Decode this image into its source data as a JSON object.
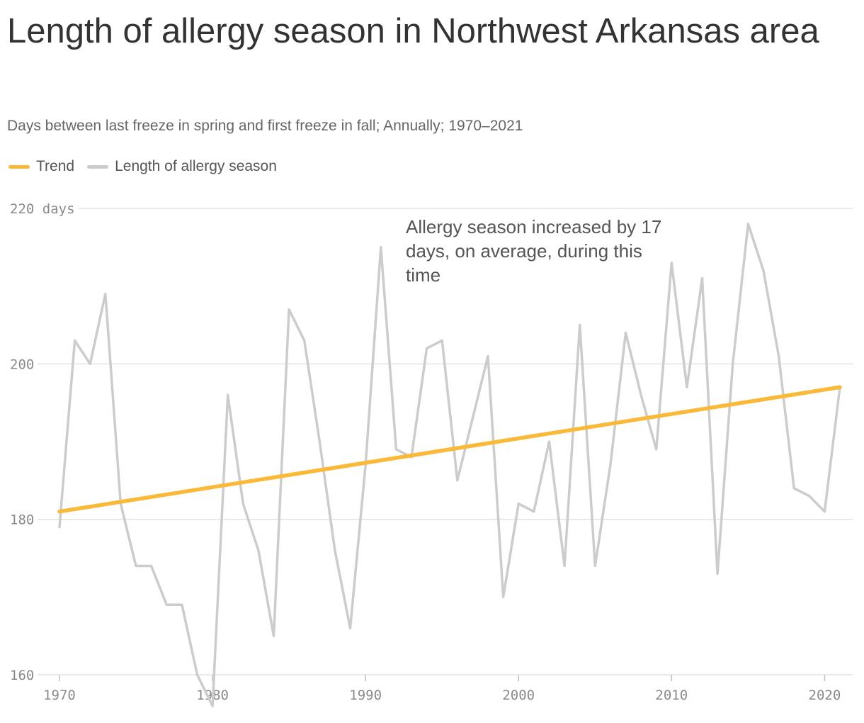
{
  "header": {
    "title": "Length of allergy season in Northwest Arkansas area",
    "subtitle": "Days between last freeze in spring and first freeze in fall; Annually; 1970–2021"
  },
  "legend": [
    {
      "label": "Trend",
      "color": "#fbb939"
    },
    {
      "label": "Length of allergy season",
      "color": "#cccccc"
    }
  ],
  "annotation": "Allergy season increased by 17 days, on average, during this time",
  "chart_data": {
    "type": "line",
    "title": "Length of allergy season in Northwest Arkansas area",
    "subtitle": "Days between last freeze in spring and first freeze in fall; Annually; 1970–2021",
    "xlabel": "",
    "ylabel": "",
    "x": [
      1970,
      1971,
      1972,
      1973,
      1974,
      1975,
      1976,
      1977,
      1978,
      1979,
      1980,
      1981,
      1982,
      1983,
      1984,
      1985,
      1986,
      1987,
      1988,
      1989,
      1990,
      1991,
      1992,
      1993,
      1994,
      1995,
      1996,
      1997,
      1998,
      1999,
      2000,
      2001,
      2002,
      2003,
      2004,
      2005,
      2006,
      2007,
      2008,
      2009,
      2010,
      2011,
      2012,
      2013,
      2014,
      2015,
      2016,
      2017,
      2018,
      2019,
      2020,
      2021
    ],
    "series": [
      {
        "name": "Length of allergy season",
        "color": "#cccccc",
        "values": [
          179,
          203,
          200,
          209,
          182,
          174,
          174,
          169,
          169,
          160,
          156,
          196,
          182,
          176,
          165,
          207,
          203,
          190,
          176,
          166,
          187,
          215,
          189,
          188,
          202,
          203,
          185,
          193,
          201,
          170,
          182,
          181,
          190,
          174,
          205,
          174,
          187,
          204,
          196,
          189,
          213,
          197,
          211,
          173,
          200,
          218,
          212,
          201,
          184,
          183,
          181,
          197
        ]
      },
      {
        "name": "Trend",
        "color": "#fbb939",
        "x": [
          1970,
          2021
        ],
        "values": [
          181,
          197
        ]
      }
    ],
    "xlim": [
      1970,
      2021
    ],
    "ylim": [
      160,
      220
    ],
    "xticks": [
      1970,
      1980,
      1990,
      2000,
      2010,
      2020
    ],
    "yticks": [
      {
        "value": 220,
        "label": "220 days"
      },
      {
        "value": 200,
        "label": "200"
      },
      {
        "value": 180,
        "label": "180"
      },
      {
        "value": 160,
        "label": "160"
      }
    ],
    "grid": true,
    "legend_position": "top-left"
  }
}
